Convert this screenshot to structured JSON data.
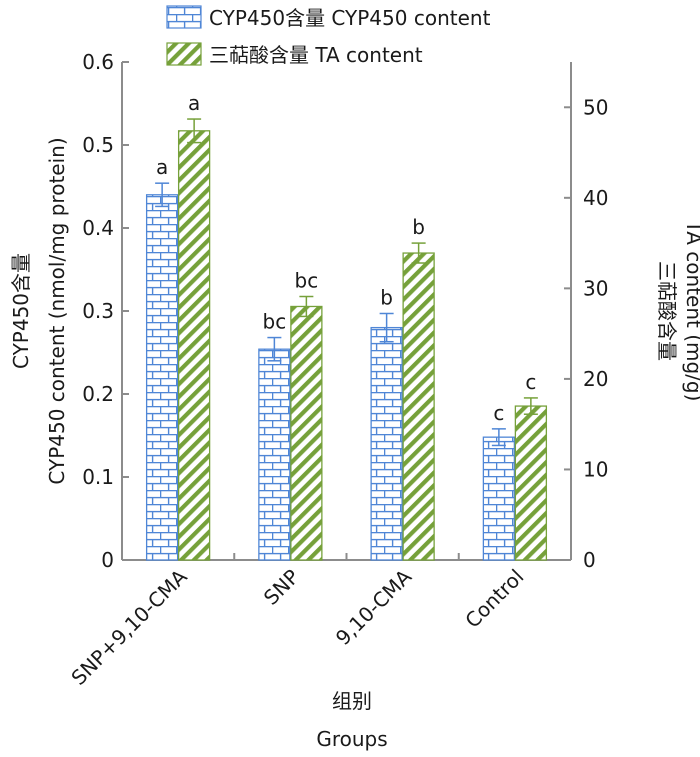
{
  "chart_data": {
    "type": "bar",
    "categories": [
      "SNP+9,10-CMA",
      "SNP",
      "9,10-CMA",
      "Control"
    ],
    "xlabel_cn": "组别",
    "xlabel_en": "Groups",
    "y_left": {
      "label_cn": "CYP450含量",
      "label_en": "CYP450 content (nmol/mg protein)",
      "lim": [
        0,
        0.6
      ],
      "ticks": [
        "0",
        "0.1",
        "0.2",
        "0.3",
        "0.4",
        "0.5",
        "0.6"
      ]
    },
    "y_right": {
      "label_cn": "三萜酸含量",
      "label_en": "TA content (mg/g)",
      "lim": [
        0,
        55
      ],
      "ticks": [
        "0",
        "10",
        "20",
        "30",
        "40",
        "50"
      ]
    },
    "series": [
      {
        "name": "CYP450含量 CYP450 content",
        "axis": "left",
        "color": "#4f86d6",
        "pattern": "brick",
        "values": [
          0.44,
          0.254,
          0.28,
          0.148
        ],
        "errors": [
          0.014,
          0.014,
          0.017,
          0.01
        ],
        "labels": [
          "a",
          "bc",
          "b",
          "c"
        ]
      },
      {
        "name": "三萜酸含量 TA content",
        "axis": "right",
        "color": "#76a13a",
        "pattern": "diagonal",
        "values": [
          47.4,
          28.0,
          33.9,
          17.0
        ],
        "errors": [
          1.3,
          1.1,
          1.1,
          0.9
        ],
        "labels": [
          "a",
          "bc",
          "b",
          "c"
        ]
      }
    ],
    "legend_position": "top",
    "grid": false
  }
}
